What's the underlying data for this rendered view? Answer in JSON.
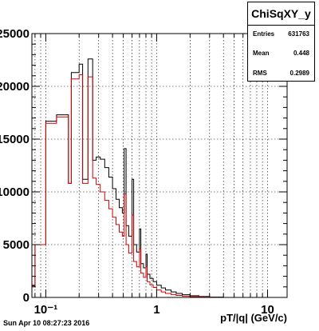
{
  "chart_data": {
    "type": "histogram",
    "title": "ChiSqXY_y",
    "xlabel": "pT/|q| (GeV/c)",
    "ylabel": "",
    "x_log": true,
    "xlim": [
      0.075,
      15
    ],
    "ylim": [
      0,
      25000
    ],
    "grid": true,
    "y_tick_values": [
      0,
      5000,
      10000,
      15000,
      20000,
      25000
    ],
    "y_tick_labels": [
      "0",
      "5000",
      "10000",
      "15000",
      "20000",
      "25000"
    ],
    "x_tick_values": [
      0.1,
      1,
      10
    ],
    "x_tick_labels": [
      "10⁻¹",
      "1",
      "10"
    ],
    "stats": {
      "entries_label": "Entries",
      "entries": "631763",
      "mean_label": "Mean",
      "mean": "0.448",
      "rms_label": "RMS",
      "rms": "0.2989"
    },
    "series": [
      {
        "color": "#000000",
        "bins": [
          [
            0.074,
            0.08,
            1100
          ],
          [
            0.08,
            0.1,
            5000
          ],
          [
            0.1,
            0.125,
            16700
          ],
          [
            0.125,
            0.16,
            17300
          ],
          [
            0.16,
            0.17,
            10800
          ],
          [
            0.17,
            0.2,
            21300
          ],
          [
            0.2,
            0.215,
            22100
          ],
          [
            0.215,
            0.24,
            11200
          ],
          [
            0.24,
            0.265,
            22600
          ],
          [
            0.265,
            0.285,
            13000
          ],
          [
            0.285,
            0.31,
            13300
          ],
          [
            0.31,
            0.34,
            13100
          ],
          [
            0.34,
            0.37,
            12300
          ],
          [
            0.37,
            0.4,
            11400
          ],
          [
            0.4,
            0.43,
            10300
          ],
          [
            0.43,
            0.46,
            9300
          ],
          [
            0.46,
            0.49,
            8500
          ],
          [
            0.49,
            0.51,
            8000
          ],
          [
            0.51,
            0.53,
            14100
          ],
          [
            0.53,
            0.56,
            6800
          ],
          [
            0.56,
            0.6,
            5800
          ],
          [
            0.6,
            0.62,
            11200
          ],
          [
            0.62,
            0.66,
            5000
          ],
          [
            0.66,
            0.7,
            4300
          ],
          [
            0.7,
            0.72,
            6500
          ],
          [
            0.72,
            0.76,
            3200
          ],
          [
            0.76,
            0.8,
            2800
          ],
          [
            0.8,
            0.82,
            4100
          ],
          [
            0.82,
            0.87,
            2200
          ],
          [
            0.87,
            0.93,
            1800
          ],
          [
            0.93,
            1.0,
            1500
          ],
          [
            1.0,
            1.1,
            1150
          ],
          [
            1.1,
            1.2,
            900
          ],
          [
            1.2,
            1.35,
            700
          ],
          [
            1.35,
            1.5,
            520
          ],
          [
            1.5,
            1.7,
            380
          ],
          [
            1.7,
            2.0,
            260
          ],
          [
            2.0,
            2.4,
            160
          ],
          [
            2.4,
            3.0,
            80
          ],
          [
            3.0,
            4.0,
            30
          ],
          [
            4.0,
            15.0,
            0
          ]
        ]
      },
      {
        "color": "#d40000",
        "bins": [
          [
            0.074,
            0.08,
            1200
          ],
          [
            0.08,
            0.1,
            5000
          ],
          [
            0.1,
            0.125,
            16500
          ],
          [
            0.125,
            0.16,
            17100
          ],
          [
            0.16,
            0.17,
            10800
          ],
          [
            0.17,
            0.2,
            20700
          ],
          [
            0.2,
            0.215,
            21100
          ],
          [
            0.215,
            0.24,
            10800
          ],
          [
            0.24,
            0.265,
            20900
          ],
          [
            0.265,
            0.285,
            11300
          ],
          [
            0.285,
            0.31,
            10700
          ],
          [
            0.31,
            0.34,
            10000
          ],
          [
            0.34,
            0.37,
            9200
          ],
          [
            0.37,
            0.4,
            8400
          ],
          [
            0.4,
            0.43,
            7600
          ],
          [
            0.43,
            0.46,
            6900
          ],
          [
            0.46,
            0.49,
            6200
          ],
          [
            0.49,
            0.51,
            5800
          ],
          [
            0.51,
            0.53,
            9800
          ],
          [
            0.53,
            0.56,
            5000
          ],
          [
            0.56,
            0.6,
            4200
          ],
          [
            0.6,
            0.62,
            7800
          ],
          [
            0.62,
            0.66,
            3400
          ],
          [
            0.66,
            0.7,
            2900
          ],
          [
            0.7,
            0.72,
            4600
          ],
          [
            0.72,
            0.76,
            2300
          ],
          [
            0.76,
            0.8,
            1900
          ],
          [
            0.8,
            0.82,
            2900
          ],
          [
            0.82,
            0.87,
            1500
          ],
          [
            0.87,
            0.93,
            1200
          ],
          [
            0.93,
            1.0,
            950
          ],
          [
            1.0,
            1.1,
            700
          ],
          [
            1.1,
            1.2,
            520
          ],
          [
            1.2,
            1.35,
            380
          ],
          [
            1.35,
            1.5,
            270
          ],
          [
            1.5,
            1.7,
            190
          ],
          [
            1.7,
            2.0,
            120
          ],
          [
            2.0,
            2.4,
            70
          ],
          [
            2.4,
            3.0,
            30
          ],
          [
            3.0,
            4.0,
            10
          ],
          [
            4.0,
            15.0,
            0
          ]
        ]
      }
    ]
  },
  "footer": {
    "timestamp": "Sun Apr 10 08:27:23 2016"
  }
}
